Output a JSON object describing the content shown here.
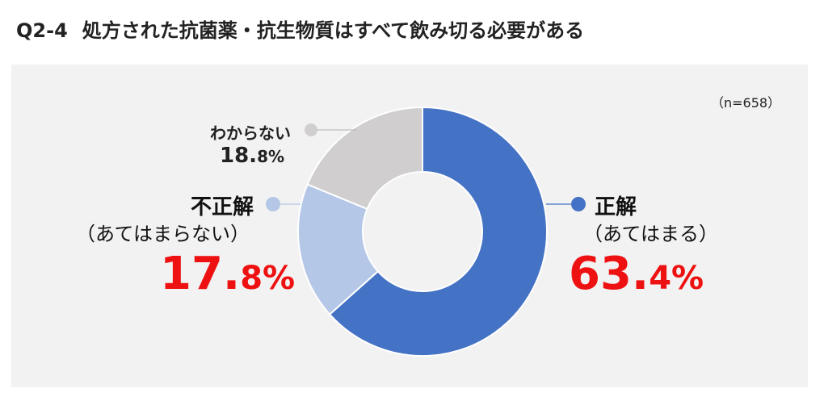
{
  "title": {
    "number": "Q2-4",
    "text": "処方された抗菌薬・抗生物質はすべて飲み切る必要がある"
  },
  "sample_size": "（n=658）",
  "colors": {
    "correct": "#4472c4",
    "incorrect": "#b4c7e7",
    "unknown": "#d0cece",
    "pct_red": "#ee1111"
  },
  "chart_data": {
    "type": "pie",
    "donut": true,
    "title": "処方された抗菌薬・抗生物質はすべて飲み切る必要がある",
    "categories": [
      "正解（あてはまる）",
      "不正解（あてはまらない）",
      "わからない"
    ],
    "values": [
      63.4,
      17.8,
      18.8
    ],
    "unit": "%",
    "n": 658,
    "legend": "callout-labels"
  },
  "labels": {
    "correct": {
      "name": "正解",
      "sub": "（あてはまる）",
      "pct_int": "63.",
      "pct_dec": "4%"
    },
    "incorrect": {
      "name": "不正解",
      "sub": "（あてはまらない）",
      "pct_int": "17.",
      "pct_dec": "8%"
    },
    "unknown": {
      "name": "わからない",
      "pct_int": "18.",
      "pct_dec": "8%"
    }
  }
}
